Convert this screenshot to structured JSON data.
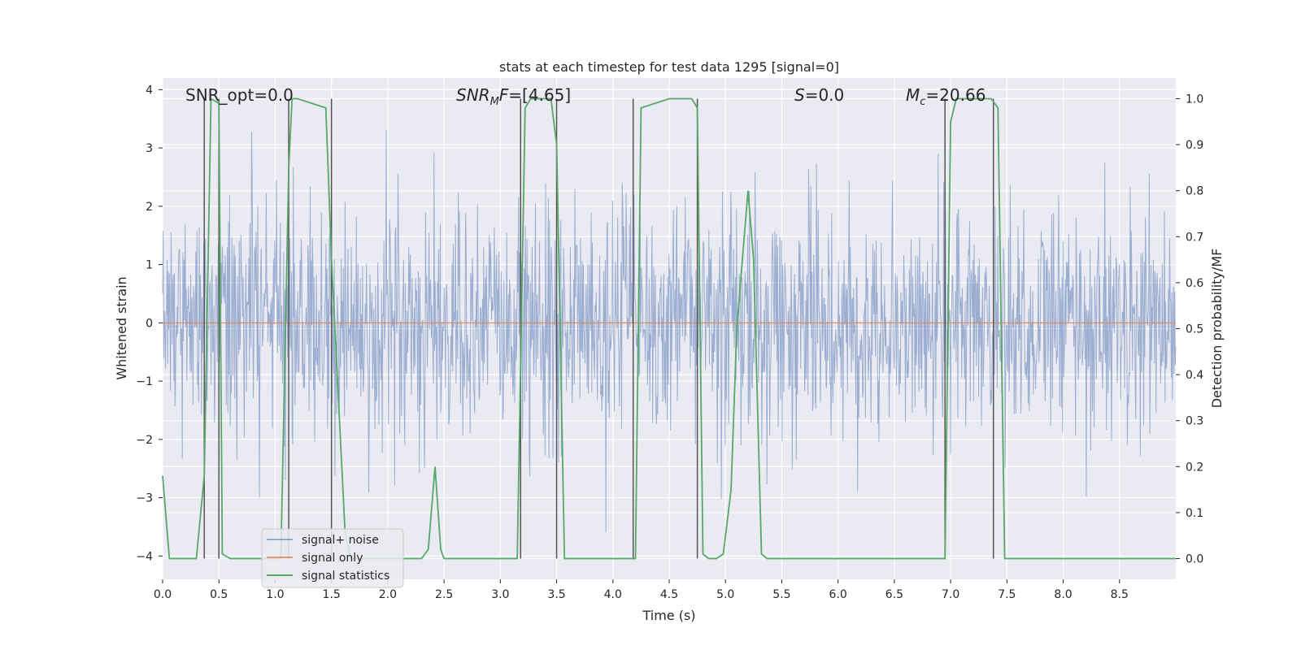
{
  "chart_data": {
    "type": "line",
    "title": "stats at each timestep for test data 1295 [signal=0]",
    "xlabel": "Time (s)",
    "ylabel_left": "Whitened strain",
    "ylabel_right": "Detection probability/MF",
    "xlim": [
      0.0,
      9.0
    ],
    "ylim_left": [
      -4.4,
      4.2
    ],
    "ylim_right": [
      -0.045,
      1.045
    ],
    "xticks": [
      "0.0",
      "0.5",
      "1.0",
      "1.5",
      "2.0",
      "2.5",
      "3.0",
      "3.5",
      "4.0",
      "4.5",
      "5.0",
      "5.5",
      "6.0",
      "6.5",
      "7.0",
      "7.5",
      "8.0",
      "8.5"
    ],
    "yticks_left": [
      "−4",
      "−3",
      "−2",
      "−1",
      "0",
      "1",
      "2",
      "3",
      "4"
    ],
    "yticks_right": [
      "0.0",
      "0.1",
      "0.2",
      "0.3",
      "0.4",
      "0.5",
      "0.6",
      "0.7",
      "0.8",
      "0.9",
      "1.0"
    ],
    "grid": true,
    "legend_position": "lower-left",
    "annotations": [
      {
        "plain": "SNR_opt=0.0"
      },
      {
        "italic": "SNR",
        "sub": "M",
        "italic2": "F",
        "rest": "=[4.65]"
      },
      {
        "italic": "S",
        "rest": "=0.0"
      },
      {
        "italic": "M",
        "sub": "c",
        "rest": "=20.66"
      }
    ],
    "series": [
      {
        "name": "signal+ noise",
        "color": "#4c72b0",
        "style": "noise",
        "sample_count": 1800,
        "std": 1.0,
        "time_range": [
          0.0,
          9.0
        ]
      },
      {
        "name": "signal only",
        "color": "#dd8452",
        "values_x": [
          0.0,
          9.0
        ],
        "values_y": [
          0.0,
          0.0
        ]
      },
      {
        "name": "signal statistics",
        "color": "#55a868",
        "x": [
          0.0,
          0.06,
          0.3,
          0.37,
          0.43,
          0.5,
          0.53,
          0.6,
          0.65,
          1.05,
          1.12,
          1.15,
          1.2,
          1.45,
          1.5,
          1.62,
          1.67,
          2.3,
          2.36,
          2.42,
          2.47,
          2.5,
          3.15,
          3.22,
          3.27,
          3.45,
          3.5,
          3.57,
          4.2,
          4.25,
          4.5,
          4.7,
          4.75,
          4.8,
          4.85,
          4.92,
          4.98,
          5.05,
          5.1,
          5.2,
          5.25,
          5.32,
          5.37,
          6.95,
          7.0,
          7.05,
          7.36,
          7.42,
          7.48,
          9.0
        ],
        "y": [
          0.18,
          0.0,
          0.0,
          0.18,
          1.0,
          0.99,
          0.01,
          0.0,
          0.0,
          0.0,
          0.85,
          1.0,
          1.0,
          0.98,
          0.65,
          0.06,
          0.0,
          0.0,
          0.02,
          0.2,
          0.02,
          0.0,
          0.0,
          0.98,
          1.0,
          1.0,
          0.9,
          0.0,
          0.0,
          0.98,
          1.0,
          1.0,
          0.98,
          0.01,
          0.0,
          0.0,
          0.01,
          0.15,
          0.5,
          0.8,
          0.65,
          0.01,
          0.0,
          0.0,
          0.95,
          1.0,
          1.0,
          0.98,
          0.0,
          0.0
        ]
      }
    ],
    "vertical_lines_x": [
      0.37,
      0.5,
      1.12,
      1.5,
      3.18,
      3.5,
      4.18,
      4.75,
      6.95,
      7.38
    ]
  },
  "legend": {
    "noise_label": "signal+ noise",
    "signal_label": "signal only",
    "stats_label": "signal statistics"
  }
}
